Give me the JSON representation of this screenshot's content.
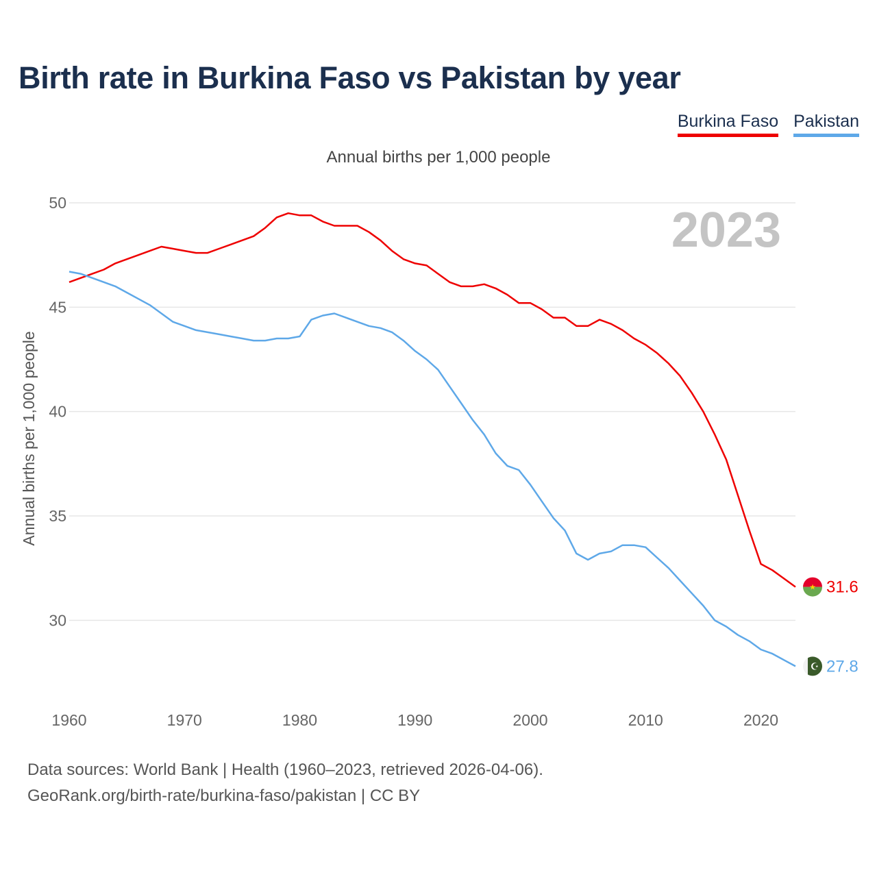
{
  "title": "Birth rate in Burkina Faso vs Pakistan by year",
  "legend": [
    {
      "name": "Burkina Faso",
      "color": "#ee0000"
    },
    {
      "name": "Pakistan",
      "color": "#5ea8e8"
    }
  ],
  "chart_data": {
    "type": "line",
    "title": "Birth rate in Burkina Faso vs Pakistan by year",
    "subtitle": "Annual births per 1,000 people",
    "ylabel": "Annual births per 1,000 people",
    "xlabel": "",
    "year_label": "2023",
    "xlim": [
      1960,
      2023
    ],
    "ylim": [
      26.5,
      50
    ],
    "yticks": [
      30,
      35,
      40,
      45,
      50
    ],
    "xticks": [
      1960,
      1970,
      1980,
      1990,
      2000,
      2010,
      2020
    ],
    "grid": true,
    "legend_position": "top-right",
    "x": [
      1960,
      1961,
      1962,
      1963,
      1964,
      1965,
      1966,
      1967,
      1968,
      1969,
      1970,
      1971,
      1972,
      1973,
      1974,
      1975,
      1976,
      1977,
      1978,
      1979,
      1980,
      1981,
      1982,
      1983,
      1984,
      1985,
      1986,
      1987,
      1988,
      1989,
      1990,
      1991,
      1992,
      1993,
      1994,
      1995,
      1996,
      1997,
      1998,
      1999,
      2000,
      2001,
      2002,
      2003,
      2004,
      2005,
      2006,
      2007,
      2008,
      2009,
      2010,
      2011,
      2012,
      2013,
      2014,
      2015,
      2016,
      2017,
      2018,
      2019,
      2020,
      2021,
      2022,
      2023
    ],
    "series": [
      {
        "name": "Burkina Faso",
        "color": "#ee0000",
        "end_label": "31.6",
        "values": [
          46.2,
          46.4,
          46.6,
          46.8,
          47.1,
          47.3,
          47.5,
          47.7,
          47.9,
          47.8,
          47.7,
          47.6,
          47.6,
          47.8,
          48.0,
          48.2,
          48.4,
          48.8,
          49.3,
          49.5,
          49.4,
          49.4,
          49.1,
          48.9,
          48.9,
          48.9,
          48.6,
          48.2,
          47.7,
          47.3,
          47.1,
          47.0,
          46.6,
          46.2,
          46.0,
          46.0,
          46.1,
          45.9,
          45.6,
          45.2,
          45.2,
          44.9,
          44.5,
          44.5,
          44.1,
          44.1,
          44.4,
          44.2,
          43.9,
          43.5,
          43.2,
          42.8,
          42.3,
          41.7,
          40.9,
          40.0,
          38.9,
          37.7,
          36.0,
          34.3,
          32.7,
          32.4,
          32.0,
          31.6
        ]
      },
      {
        "name": "Pakistan",
        "color": "#5ea8e8",
        "end_label": "27.8",
        "values": [
          46.7,
          46.6,
          46.4,
          46.2,
          46.0,
          45.7,
          45.4,
          45.1,
          44.7,
          44.3,
          44.1,
          43.9,
          43.8,
          43.7,
          43.6,
          43.5,
          43.4,
          43.4,
          43.5,
          43.5,
          43.6,
          44.4,
          44.6,
          44.7,
          44.5,
          44.3,
          44.1,
          44.0,
          43.8,
          43.4,
          42.9,
          42.5,
          42.0,
          41.2,
          40.4,
          39.6,
          38.9,
          38.0,
          37.4,
          37.2,
          36.5,
          35.7,
          34.9,
          34.3,
          33.2,
          32.9,
          33.2,
          33.3,
          33.6,
          33.6,
          33.5,
          33.0,
          32.5,
          31.9,
          31.3,
          30.7,
          30.0,
          29.7,
          29.3,
          29.0,
          28.6,
          28.4,
          28.1,
          27.8
        ]
      }
    ]
  },
  "footer": {
    "line1": "Data sources: World Bank | Health (1960–2023, retrieved 2026-04-06).",
    "line2": "GeoRank.org/birth-rate/burkina-faso/pakistan | CC BY"
  }
}
